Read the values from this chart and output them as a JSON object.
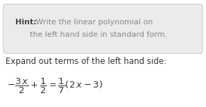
{
  "hint_label": "Hint:",
  "hint_text_line1": " Write the linear polynomial on",
  "hint_text_line2": "      the left hand side in standard form.",
  "expand_text": "Expand out terms of the left hand side:",
  "box_facecolor": "#ebebeb",
  "box_edgecolor": "#cccccc",
  "bg_color": "#ffffff",
  "text_color": "#333333",
  "hint_text_color": "#888888",
  "hint_bold_color": "#444444",
  "font_size_hint": 8.0,
  "font_size_expand": 8.5,
  "font_size_math": 9.5,
  "figwidth": 2.97,
  "figheight": 1.54,
  "dpi": 100
}
